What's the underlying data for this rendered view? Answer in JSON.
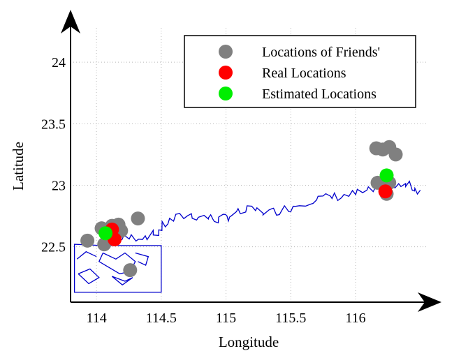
{
  "chart_data": {
    "type": "scatter",
    "xlabel": "Longitude",
    "ylabel": "Latitude",
    "xlim": [
      113.8,
      116.55
    ],
    "ylim": [
      22.05,
      24.25
    ],
    "xticks": [
      114,
      114.5,
      115,
      115.5,
      116
    ],
    "xtick_labels": [
      "114",
      "114.5",
      "115",
      "115.5",
      "116"
    ],
    "yticks": [
      22.5,
      23,
      23.5,
      24
    ],
    "ytick_labels": [
      "22.5",
      "23",
      "23.5",
      "24"
    ],
    "grid": true,
    "legend_position": "top-right",
    "series": [
      {
        "name": "Locations of Friends'",
        "color": "#808080",
        "points": [
          {
            "x": 113.93,
            "y": 22.55
          },
          {
            "x": 114.04,
            "y": 22.65
          },
          {
            "x": 114.08,
            "y": 22.62
          },
          {
            "x": 114.12,
            "y": 22.67
          },
          {
            "x": 114.17,
            "y": 22.68
          },
          {
            "x": 114.15,
            "y": 22.61
          },
          {
            "x": 114.1,
            "y": 22.57
          },
          {
            "x": 114.06,
            "y": 22.52
          },
          {
            "x": 114.19,
            "y": 22.63
          },
          {
            "x": 114.32,
            "y": 22.73
          },
          {
            "x": 114.26,
            "y": 22.31
          },
          {
            "x": 116.16,
            "y": 23.3
          },
          {
            "x": 116.21,
            "y": 23.29
          },
          {
            "x": 116.26,
            "y": 23.31
          },
          {
            "x": 116.31,
            "y": 23.25
          },
          {
            "x": 116.17,
            "y": 23.02
          },
          {
            "x": 116.26,
            "y": 23.02
          },
          {
            "x": 116.24,
            "y": 22.93
          }
        ]
      },
      {
        "name": "Real Locations",
        "color": "#ff0000",
        "points": [
          {
            "x": 114.12,
            "y": 22.64
          },
          {
            "x": 114.14,
            "y": 22.56
          },
          {
            "x": 116.23,
            "y": 22.95
          }
        ]
      },
      {
        "name": "Estimated Locations",
        "color": "#00ee00",
        "points": [
          {
            "x": 114.07,
            "y": 22.61
          },
          {
            "x": 116.24,
            "y": 23.08
          }
        ]
      }
    ],
    "coastline_color": "#0000cc"
  }
}
